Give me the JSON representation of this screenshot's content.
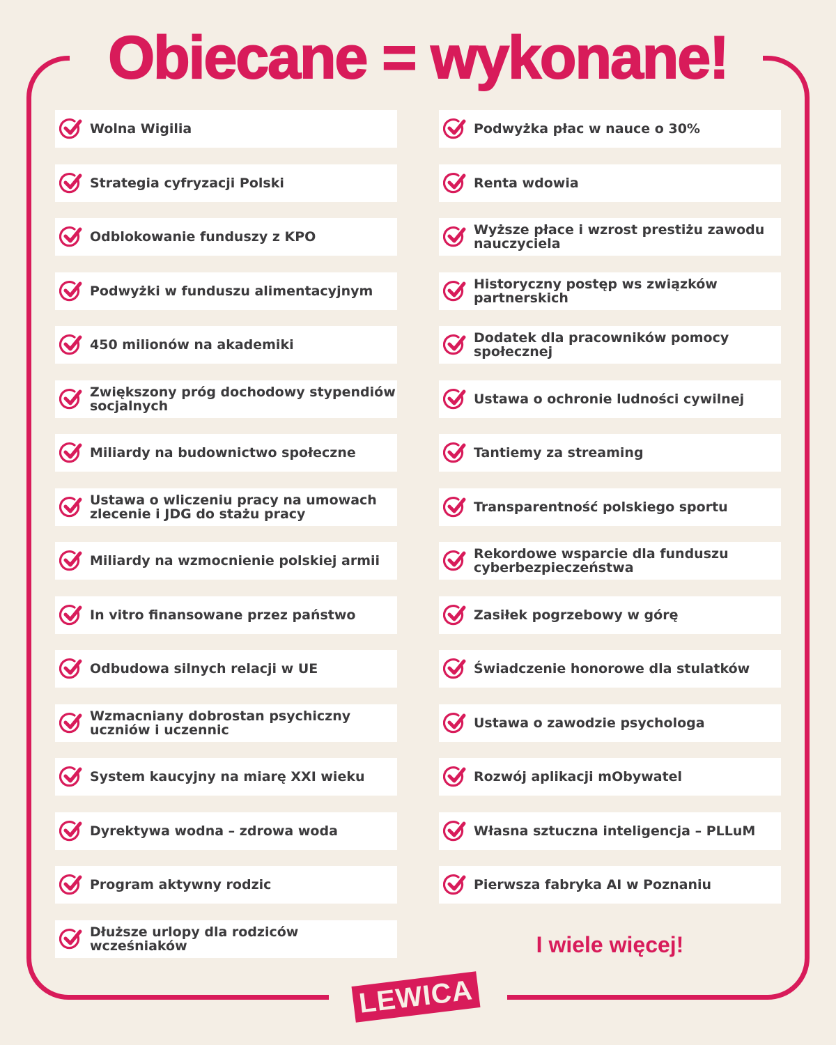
{
  "title": "Obiecane = wykonane!",
  "colors": {
    "accent": "#d81b5a",
    "background": "#f4eee5",
    "text": "#3b3a3c"
  },
  "icon": "check-circle-icon",
  "left_items": [
    "Wolna Wigilia",
    "Strategia cyfryzacji Polski",
    "Odblokowanie funduszy z KPO",
    "Podwyżki w funduszu alimentacyjnym",
    "450 milionów na akademiki",
    "Zwiększony próg dochodowy stypendiów socjalnych",
    "Miliardy na budownictwo społeczne",
    "Ustawa o wliczeniu pracy na umowach zlecenie i JDG do stażu pracy",
    "Miliardy na wzmocnienie polskiej armii",
    "In vitro finansowane przez państwo",
    "Odbudowa silnych relacji w UE",
    "Wzmacniany dobrostan psychiczny uczniów i uczennic",
    "System kaucyjny na miarę XXI wieku",
    "Dyrektywa wodna – zdrowa woda",
    "Program aktywny rodzic",
    "Dłuższe urlopy dla rodziców wcześniaków"
  ],
  "right_items": [
    "Podwyżka płac w nauce o 30%",
    "Renta wdowia",
    "Wyższe płace i wzrost prestiżu zawodu nauczyciela",
    "Historyczny postęp ws związków partnerskich",
    "Dodatek dla pracowników pomocy społecznej",
    "Ustawa o ochronie ludności cywilnej",
    "Tantiemy za streaming",
    "Transparentność polskiego sportu",
    "Rekordowe wsparcie dla funduszu cyberbezpieczeństwa",
    "Zasiłek pogrzebowy w górę",
    "Świadczenie honorowe dla stulatków",
    "Ustawa o zawodzie psychologa",
    "Rozwój aplikacji mObywatel",
    "Własna sztuczna inteligencja – PLLuM",
    "Pierwsza fabryka AI w Poznaniu"
  ],
  "more": "I wiele więcej!",
  "logo": "LEWICA"
}
